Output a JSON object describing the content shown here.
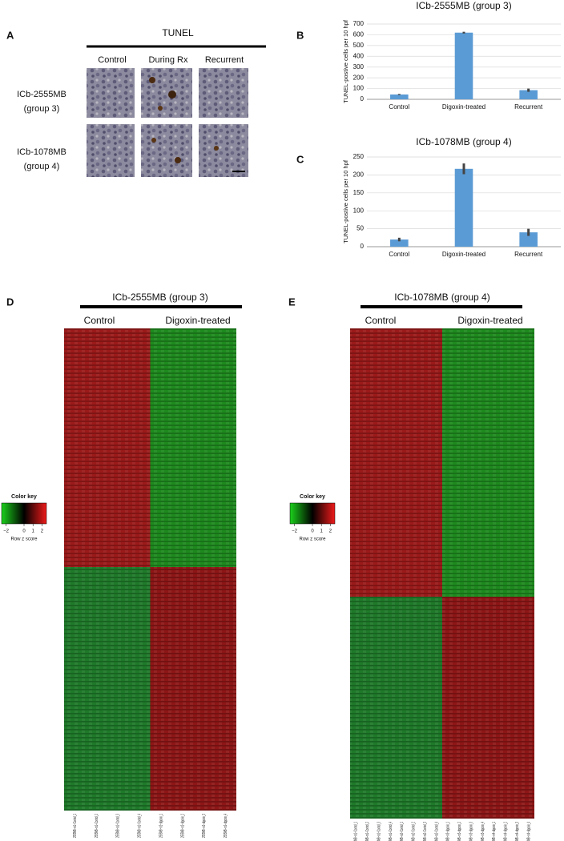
{
  "panels": {
    "letters": [
      "A",
      "B",
      "C",
      "D",
      "E"
    ],
    "tunel": {
      "title": "TUNEL",
      "columns": [
        "Control",
        "During Rx",
        "Recurrent"
      ],
      "rows": [
        [
          "ICb-2555MB",
          "(group 3)"
        ],
        [
          "ICb-1078MB",
          "(group 4)"
        ]
      ]
    },
    "heatmaps": [
      {
        "title": "ICb-2555MB (group 3)",
        "groups": [
          "Control",
          "Digoxin-treated"
        ],
        "columns": [
          "2555MB−m1−Control_1",
          "2555MB−m1−Control_2",
          "2555MB−m1−Control_3",
          "2555MB−m1−Control_4",
          "2555MB−m2−digoxin_1",
          "2555MB−m2−digoxin_2",
          "2555MB−m2−digoxin_3",
          "2555MB−m2−digoxin_4"
        ],
        "key_title": "Color key",
        "key_label": "Row z score",
        "key_lim": [
          -2.5,
          2.5
        ],
        "key_ticks": [
          {
            "value": -2,
            "label": "−2"
          },
          0,
          1,
          2
        ]
      },
      {
        "title": "ICb-1078MB (group 4)",
        "groups": [
          "Control",
          "Digoxin-treated"
        ],
        "columns": [
          "1078MB−m1−Control_1",
          "1078MB−m1−Control_2",
          "1078MB−m1−Control_3",
          "1078MB−m1−Control_4",
          "1078MB−m2−Control_1",
          "1078MB−m2−Control_2",
          "1078MB−m2−Control_3",
          "1078MB−m2−Control_4",
          "1078MB−m3−digoxin_1",
          "1078MB−m3−digoxin_2",
          "1078MB−m3−digoxin_3",
          "1078MB−m3−digoxin_4",
          "1078MB−m4−digoxin_1",
          "1078MB−m4−digoxin_2",
          "1078MB−m4−digoxin_3",
          "1078MB−m4−digoxin_4"
        ],
        "key_title": "Color key",
        "key_label": "Row z score",
        "key_lim": [
          -2.5,
          2.5
        ],
        "key_ticks": [
          {
            "value": -2,
            "label": "−2"
          },
          0,
          1,
          2
        ]
      }
    ]
  },
  "chart_data": [
    {
      "type": "bar",
      "title": "ICb-2555MB (group 3)",
      "y_label": "TUNEL-postive cells per 10 hpf",
      "categories": [
        "Control",
        "Digoxin-treated",
        "Recurrent"
      ],
      "values": [
        45,
        620,
        85
      ],
      "errors": [
        5,
        8,
        15
      ],
      "color": "#5b9bd5",
      "ylim": [
        0,
        700
      ],
      "yticks": [
        0,
        100,
        200,
        300,
        400,
        500,
        600,
        700
      ]
    },
    {
      "type": "bar",
      "title": "ICb-1078MB (group 4)",
      "y_label": "TUNEL-postive cells per 10 hpf",
      "categories": [
        "Control",
        "Digoxin-treated",
        "Recurrent"
      ],
      "values": [
        20,
        217,
        40
      ],
      "errors": [
        5,
        15,
        10
      ],
      "color": "#5b9bd5",
      "ylim": [
        0,
        250
      ],
      "yticks": [
        0,
        50,
        100,
        150,
        200,
        250
      ]
    }
  ]
}
